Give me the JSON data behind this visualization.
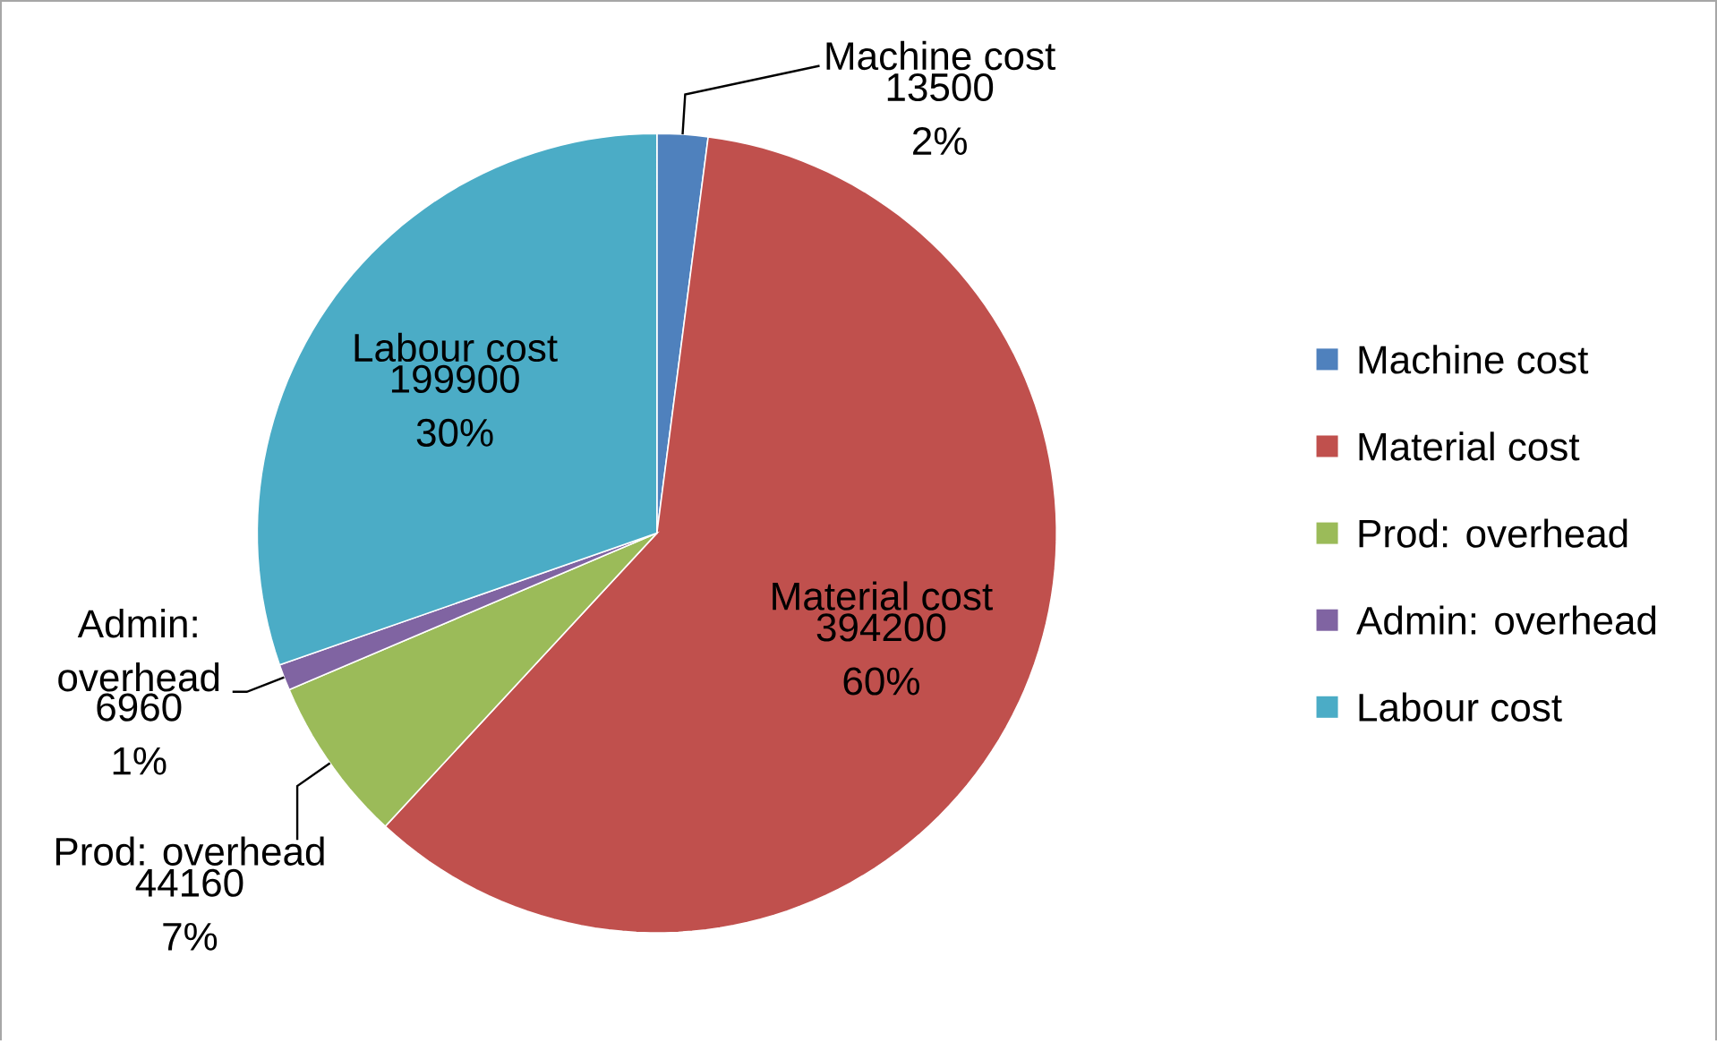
{
  "chart_data": {
    "type": "pie",
    "categories": [
      "Machine cost",
      "Material cost",
      "Prod: overhead",
      "Admin: overhead",
      "Labour cost"
    ],
    "values": [
      13500,
      394200,
      44160,
      6960,
      199900
    ],
    "colors": [
      "#4f81bd",
      "#c0504d",
      "#9bbb59",
      "#8064a2",
      "#4bacc6"
    ],
    "value_labels": [
      "13500 2%",
      "394200 60%",
      "44160 7%",
      "6960 1%",
      "199900 30%"
    ],
    "legend": "right"
  }
}
